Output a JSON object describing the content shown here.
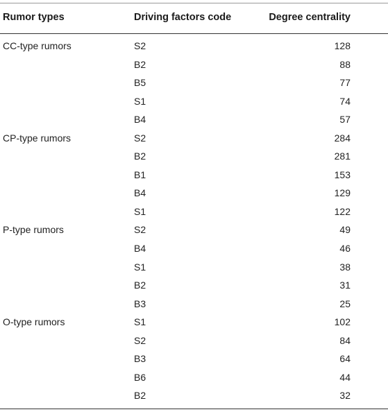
{
  "table": {
    "headers": {
      "rumor_types": "Rumor types",
      "driving_factors_code": "Driving factors code",
      "degree_centrality": "Degree centrality"
    },
    "rows": [
      {
        "type": "CC-type rumors",
        "code": "S2",
        "degree": "128"
      },
      {
        "type": "",
        "code": "B2",
        "degree": "88"
      },
      {
        "type": "",
        "code": "B5",
        "degree": "77"
      },
      {
        "type": "",
        "code": "S1",
        "degree": "74"
      },
      {
        "type": "",
        "code": "B4",
        "degree": "57"
      },
      {
        "type": "CP-type rumors",
        "code": "S2",
        "degree": "284"
      },
      {
        "type": "",
        "code": "B2",
        "degree": "281"
      },
      {
        "type": "",
        "code": "B1",
        "degree": "153"
      },
      {
        "type": "",
        "code": "B4",
        "degree": "129"
      },
      {
        "type": "",
        "code": "S1",
        "degree": "122"
      },
      {
        "type": "P-type rumors",
        "code": "S2",
        "degree": "49"
      },
      {
        "type": "",
        "code": "B4",
        "degree": "46"
      },
      {
        "type": "",
        "code": "S1",
        "degree": "38"
      },
      {
        "type": "",
        "code": "B2",
        "degree": "31"
      },
      {
        "type": "",
        "code": "B3",
        "degree": "25"
      },
      {
        "type": "O-type rumors",
        "code": "S1",
        "degree": "102"
      },
      {
        "type": "",
        "code": "S2",
        "degree": "84"
      },
      {
        "type": "",
        "code": "B3",
        "degree": "64"
      },
      {
        "type": "",
        "code": "B6",
        "degree": "44"
      },
      {
        "type": "",
        "code": "B2",
        "degree": "32"
      }
    ]
  }
}
